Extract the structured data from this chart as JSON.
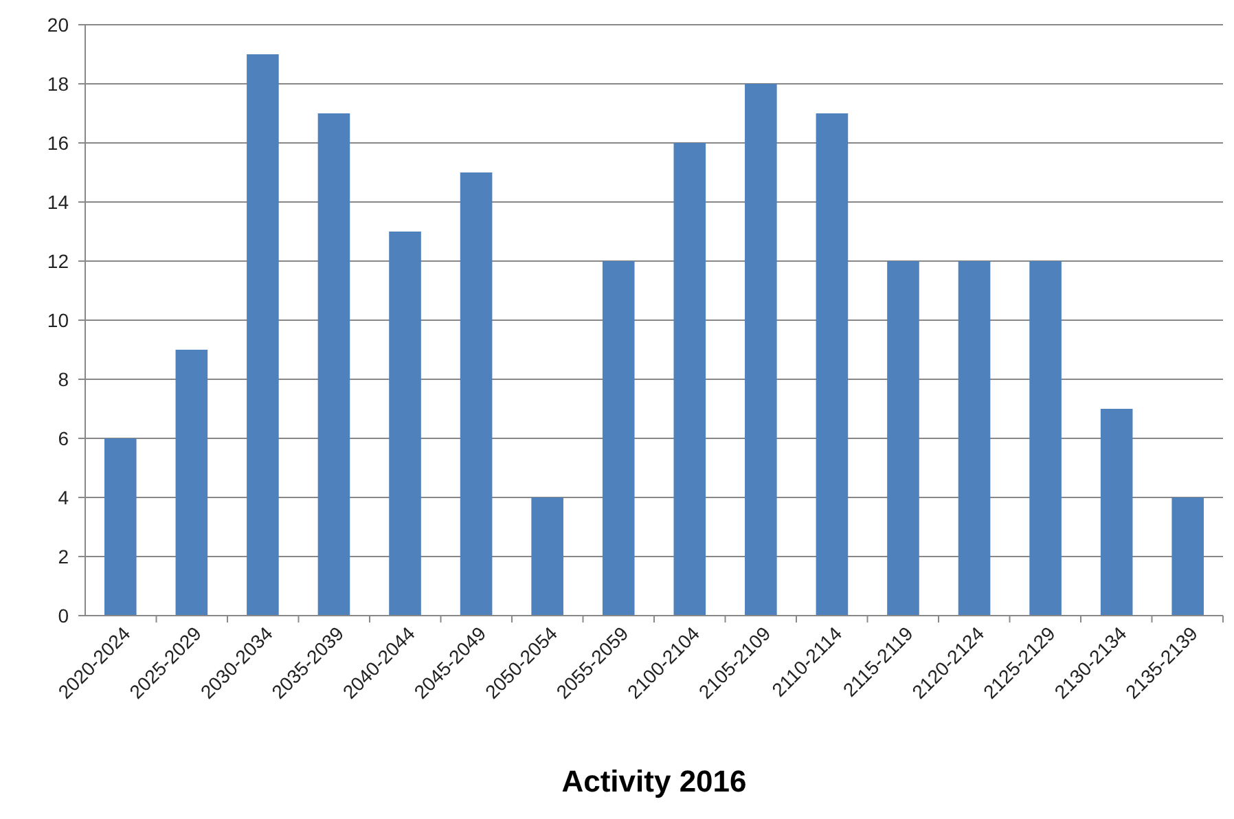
{
  "chart_data": {
    "type": "bar",
    "xlabel": "Activity 2016",
    "categories": [
      "2020-2024",
      "2025-2029",
      "2030-2034",
      "2035-2039",
      "2040-2044",
      "2045-2049",
      "2050-2054",
      "2055-2059",
      "2100-2104",
      "2105-2109",
      "2110-2114",
      "2115-2119",
      "2120-2124",
      "2125-2129",
      "2130-2134",
      "2135-2139"
    ],
    "values": [
      6,
      9,
      19,
      17,
      13,
      15,
      4,
      12,
      16,
      18,
      17,
      12,
      12,
      12,
      7,
      4
    ],
    "color": "#4f81bd",
    "ylim": [
      0,
      20
    ],
    "yticks": [
      0,
      2,
      4,
      6,
      8,
      10,
      12,
      14,
      16,
      18,
      20
    ],
    "grid": "y"
  }
}
